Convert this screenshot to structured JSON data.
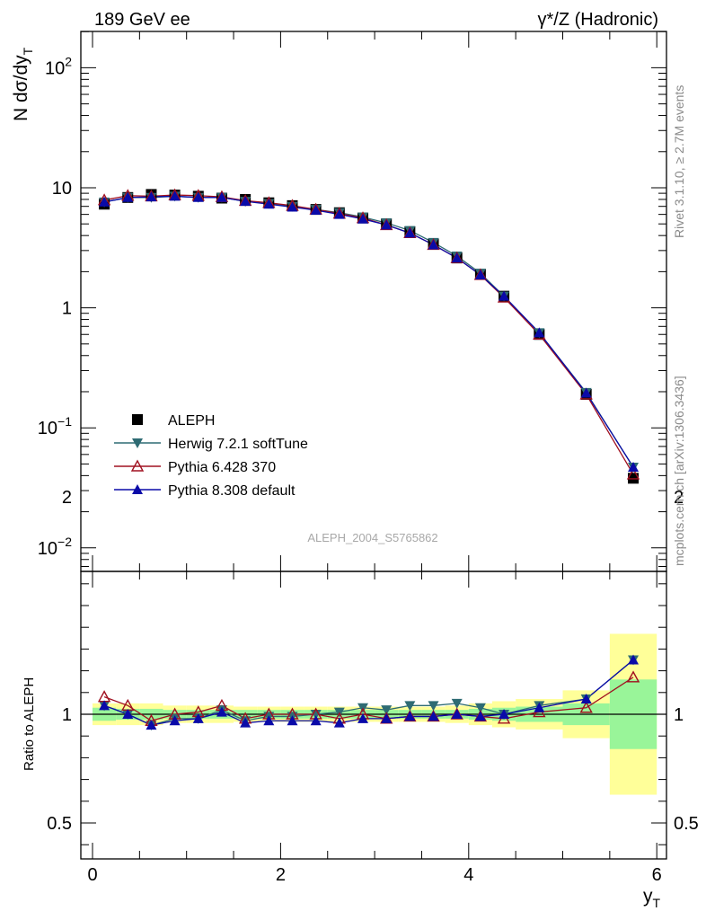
{
  "chart_data": {
    "type": "line",
    "title_left": "189 GeV ee",
    "title_right": "γ*/Z (Hadronic)",
    "ylabel": "N dσ/dy",
    "ylabel_sub": "T",
    "xlabel": "y",
    "xlabel_sub": "T",
    "ratio_ylabel": "Ratio to ALEPH",
    "watermark": "ALEPH_2004_S5765862",
    "side_text_1": "Rivet 3.1.10, ≥ 2.7M events",
    "side_text_2": "mcplots.cern.ch [arXiv:1306.3436]",
    "yscale": "log",
    "ylim": [
      0.007,
      200
    ],
    "xlim": [
      -0.2,
      6.2
    ],
    "ratio_ylim": [
      0.35,
      2.3
    ],
    "legend_position": "bottom-left",
    "main_tick_labels": [
      {
        "v": 0.01,
        "base": "10",
        "exp": "−2"
      },
      {
        "v": 0.1,
        "base": "10",
        "exp": "−1"
      },
      {
        "v": 1,
        "base": "1",
        "exp": ""
      },
      {
        "v": 10,
        "base": "10",
        "exp": ""
      },
      {
        "v": 100,
        "base": "10",
        "exp": "2"
      }
    ],
    "x_ticks": [
      {
        "v": 0,
        "label": "0"
      },
      {
        "v": 2,
        "label": "2"
      },
      {
        "v": 4,
        "label": "4"
      },
      {
        "v": 6,
        "label": "6"
      }
    ],
    "ratio_ticks": [
      {
        "v": 0.5,
        "label": "0.5"
      },
      {
        "v": 1,
        "label": "1"
      },
      {
        "v": 2,
        "label": "2"
      }
    ],
    "x": [
      0.125,
      0.375,
      0.625,
      0.875,
      1.125,
      1.375,
      1.625,
      1.875,
      2.125,
      2.375,
      2.625,
      2.875,
      3.125,
      3.375,
      3.625,
      3.875,
      4.125,
      4.375,
      4.75,
      5.25,
      5.75
    ],
    "bin_edges": [
      0,
      0.25,
      0.5,
      0.75,
      1.0,
      1.25,
      1.5,
      1.75,
      2.0,
      2.25,
      2.5,
      2.75,
      3.0,
      3.25,
      3.5,
      3.75,
      4.0,
      4.25,
      4.5,
      5.0,
      5.5,
      6.0
    ],
    "data_values": [
      7.3,
      8.3,
      8.8,
      8.7,
      8.5,
      8.2,
      8.0,
      7.5,
      7.1,
      6.6,
      6.2,
      5.6,
      5.0,
      4.3,
      3.4,
      2.6,
      1.9,
      1.25,
      0.6,
      0.19,
      0.038
    ],
    "band_inner": [
      0.03,
      0.025,
      0.025,
      0.02,
      0.02,
      0.02,
      0.02,
      0.02,
      0.02,
      0.02,
      0.02,
      0.02,
      0.02,
      0.02,
      0.02,
      0.02,
      0.025,
      0.03,
      0.035,
      0.05,
      0.16
    ],
    "band_outer": [
      0.05,
      0.05,
      0.05,
      0.04,
      0.04,
      0.04,
      0.035,
      0.035,
      0.035,
      0.035,
      0.035,
      0.035,
      0.035,
      0.035,
      0.035,
      0.04,
      0.05,
      0.06,
      0.07,
      0.11,
      0.37
    ],
    "series": [
      {
        "name": "ALEPH",
        "color": "#000000",
        "marker": "square",
        "values": [
          7.3,
          8.3,
          8.8,
          8.7,
          8.5,
          8.2,
          8.0,
          7.5,
          7.1,
          6.6,
          6.2,
          5.6,
          5.0,
          4.3,
          3.4,
          2.6,
          1.9,
          1.25,
          0.6,
          0.19,
          0.038
        ],
        "ratio": [
          1,
          1,
          1,
          1,
          1,
          1,
          1,
          1,
          1,
          1,
          1,
          1,
          1,
          1,
          1,
          1,
          1,
          1,
          1,
          1,
          1
        ]
      },
      {
        "name": "Herwig 7.2.1 softTune",
        "color": "#2e6b73",
        "marker": "triangle-down",
        "values": [
          7.6,
          8.3,
          8.3,
          8.5,
          8.3,
          8.3,
          7.7,
          7.4,
          7.0,
          6.6,
          6.2,
          5.7,
          5.1,
          4.4,
          3.5,
          2.7,
          1.94,
          1.25,
          0.62,
          0.197,
          0.047
        ],
        "ratio": [
          1.04,
          1.0,
          0.95,
          0.98,
          0.98,
          1.02,
          0.97,
          0.99,
          0.99,
          1.0,
          1.01,
          1.03,
          1.02,
          1.04,
          1.04,
          1.05,
          1.03,
          1.0,
          1.04,
          1.07,
          1.25
        ]
      },
      {
        "name": "Pythia 6.428 370",
        "color": "#a01020",
        "marker": "triangle-up-open",
        "values": [
          7.9,
          8.6,
          8.5,
          8.7,
          8.6,
          8.4,
          7.8,
          7.5,
          7.1,
          6.6,
          6.1,
          5.6,
          4.9,
          4.2,
          3.35,
          2.6,
          1.88,
          1.22,
          0.6,
          0.19,
          0.041
        ],
        "ratio": [
          1.08,
          1.04,
          0.97,
          1.0,
          1.01,
          1.04,
          0.98,
          1.0,
          1.0,
          1.0,
          0.98,
          1.0,
          0.98,
          0.99,
          0.99,
          1.0,
          0.99,
          0.98,
          1.01,
          1.03,
          1.17
        ]
      },
      {
        "name": "Pythia 8.308 default",
        "color": "#0a0aa8",
        "marker": "triangle-up",
        "values": [
          7.6,
          8.3,
          8.4,
          8.5,
          8.3,
          8.3,
          7.7,
          7.3,
          6.9,
          6.5,
          6.0,
          5.5,
          4.9,
          4.2,
          3.35,
          2.6,
          1.88,
          1.25,
          0.62,
          0.195,
          0.047
        ],
        "ratio": [
          1.04,
          1.0,
          0.95,
          0.97,
          0.98,
          1.01,
          0.96,
          0.97,
          0.97,
          0.97,
          0.96,
          0.98,
          0.98,
          0.99,
          0.99,
          1.0,
          0.99,
          1.0,
          1.03,
          1.07,
          1.25
        ]
      }
    ]
  }
}
